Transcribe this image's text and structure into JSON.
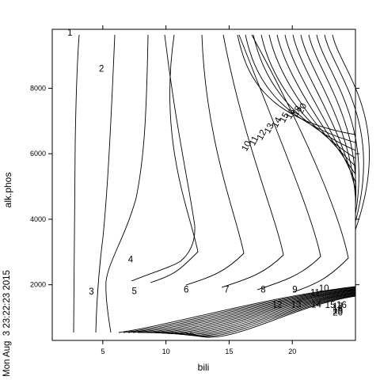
{
  "timestamp": "Mon Aug  3 23:22:23 2015",
  "chart_data": {
    "type": "contour",
    "title": "",
    "xlabel": "bili",
    "ylabel": "alk.phos",
    "xlim": [
      1,
      25
    ],
    "ylim": [
      300,
      9800
    ],
    "x_ticks": [
      5,
      10,
      15,
      20
    ],
    "y_ticks": [
      2000,
      4000,
      6000,
      8000
    ],
    "grid": false,
    "legend": "none",
    "contour_labels": [
      {
        "text": "1",
        "x": 2.4,
        "y": 9680
      },
      {
        "text": "2",
        "x": 4.9,
        "y": 8580
      },
      {
        "text": "3",
        "x": 4.1,
        "y": 1780
      },
      {
        "text": "4",
        "x": 7.2,
        "y": 2760
      },
      {
        "text": "5",
        "x": 7.5,
        "y": 1790
      },
      {
        "text": "6",
        "x": 11.6,
        "y": 1830
      },
      {
        "text": "7",
        "x": 14.8,
        "y": 1840
      },
      {
        "text": "8",
        "x": 17.7,
        "y": 1840
      },
      {
        "text": "9",
        "x": 20.2,
        "y": 1840
      },
      {
        "text": "10",
        "x": 22.5,
        "y": 1870
      },
      {
        "text": "11",
        "x": 21.8,
        "y": 1740
      },
      {
        "text": "12",
        "x": 18.8,
        "y": 1380
      },
      {
        "text": "13",
        "x": 20.3,
        "y": 1380
      },
      {
        "text": "14",
        "x": 21.9,
        "y": 1380
      },
      {
        "text": "15",
        "x": 23.0,
        "y": 1360
      },
      {
        "text": "16",
        "x": 23.9,
        "y": 1360
      },
      {
        "text": "17",
        "x": 23.6,
        "y": 1320
      },
      {
        "text": "18",
        "x": 23.6,
        "y": 1260
      },
      {
        "text": "19",
        "x": 23.6,
        "y": 1200
      },
      {
        "text": "20",
        "x": 23.6,
        "y": 1140
      },
      {
        "text": "10",
        "x": 16.4,
        "y": 6230,
        "rotate": -62
      },
      {
        "text": "11",
        "x": 17.0,
        "y": 6390,
        "rotate": -62
      },
      {
        "text": "12",
        "x": 17.6,
        "y": 6570,
        "rotate": -62
      },
      {
        "text": "13",
        "x": 18.2,
        "y": 6770,
        "rotate": -62
      },
      {
        "text": "14",
        "x": 18.8,
        "y": 6950,
        "rotate": -62
      },
      {
        "text": "15",
        "x": 19.4,
        "y": 7100,
        "rotate": -62
      },
      {
        "text": "16",
        "x": 19.9,
        "y": 7210,
        "rotate": -62
      },
      {
        "text": "18",
        "x": 20.4,
        "y": 7300,
        "rotate": -62
      },
      {
        "text": "20",
        "x": 20.8,
        "y": 7380,
        "rotate": -62
      }
    ]
  }
}
